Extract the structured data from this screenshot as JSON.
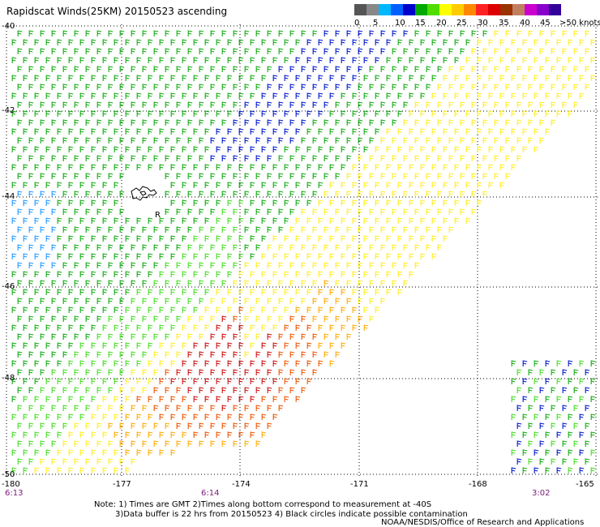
{
  "title": "Rapidscat Winds(25KM) 20150523 ascending",
  "colorbar": {
    "labels": [
      "0",
      "5",
      "10",
      "15",
      "20",
      "25",
      "30",
      "35",
      "40",
      "45",
      ">50 knots"
    ],
    "colors": [
      "#555555",
      "#888888",
      "#00b8ff",
      "#0060ff",
      "#0000cc",
      "#00aa00",
      "#50dd00",
      "#ffff00",
      "#ffcc00",
      "#ff8800",
      "#ff2222",
      "#dd0000",
      "#993300",
      "#c08060",
      "#cc00cc",
      "#8800cc",
      "#330099"
    ]
  },
  "axes": {
    "lat_labels": [
      "-40",
      "-42",
      "-44",
      "-46",
      "-48",
      "-50"
    ],
    "lon_labels": [
      "-180",
      "-177",
      "-174",
      "-171",
      "-168",
      "-165"
    ]
  },
  "times": [
    "6:13",
    "6:14",
    "3:02"
  ],
  "notes": {
    "line1": "Note: 1) Times are GMT 2)Times along bottom correspond to measurement at -40S",
    "line2": "3)Data buffer is 22 hrs from 20150523 4) Black circles indicate possible contamination",
    "line3": "NOAA/NESDIS/Office of Research and Applications"
  },
  "island_label": "R",
  "wind_palette": {
    "green": "#11aa11",
    "lightgreen": "#44dd22",
    "blue": "#0018cc",
    "lightblue": "#2299ff",
    "yellow": "#ffee22",
    "orange": "#ffaa00",
    "darkorange": "#ee5500",
    "red": "#cc1111"
  }
}
